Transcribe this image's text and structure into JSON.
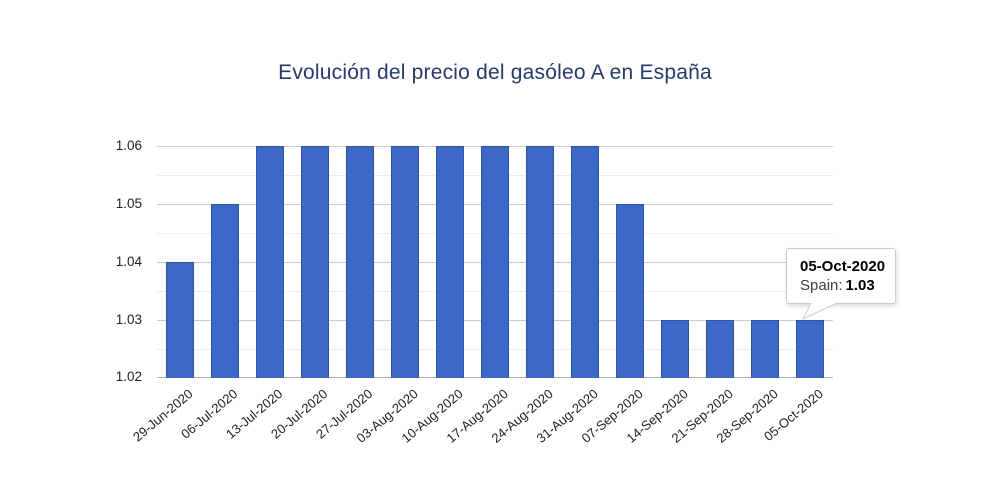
{
  "chart_data": {
    "type": "bar",
    "title": "Evolución del precio del gasóleo A en España",
    "categories": [
      "29-Jun-2020",
      "06-Jul-2020",
      "13-Jul-2020",
      "20-Jul-2020",
      "27-Jul-2020",
      "03-Aug-2020",
      "10-Aug-2020",
      "17-Aug-2020",
      "24-Aug-2020",
      "31-Aug-2020",
      "07-Sep-2020",
      "14-Sep-2020",
      "21-Sep-2020",
      "28-Sep-2020",
      "05-Oct-2020"
    ],
    "series": [
      {
        "name": "Spain",
        "values": [
          1.04,
          1.05,
          1.06,
          1.06,
          1.06,
          1.06,
          1.06,
          1.06,
          1.06,
          1.06,
          1.05,
          1.03,
          1.03,
          1.03,
          1.03
        ]
      }
    ],
    "xlabel": "",
    "ylabel": "",
    "ylim": [
      1.02,
      1.06
    ],
    "yticks": [
      "1.02",
      "1.03",
      "1.04",
      "1.05",
      "1.06"
    ],
    "yticks_minor": [
      1.025,
      1.035,
      1.045,
      1.055
    ],
    "grid": true,
    "legend_position": "none",
    "x_label_rotation": -40,
    "highlighted_category": "05-Oct-2020",
    "colors": {
      "bar_fill": "#3B68C7",
      "bar_stroke": "#2C55A9",
      "grid_major": "#CCCCCC",
      "grid_minor": "#ECECEC",
      "baseline": "#B3B3B3",
      "title": "#283A6B",
      "axis_text": "#1F1F1F"
    }
  },
  "tooltip": {
    "date": "05-Oct-2020",
    "series_label": "Spain:",
    "value": "1.03"
  }
}
